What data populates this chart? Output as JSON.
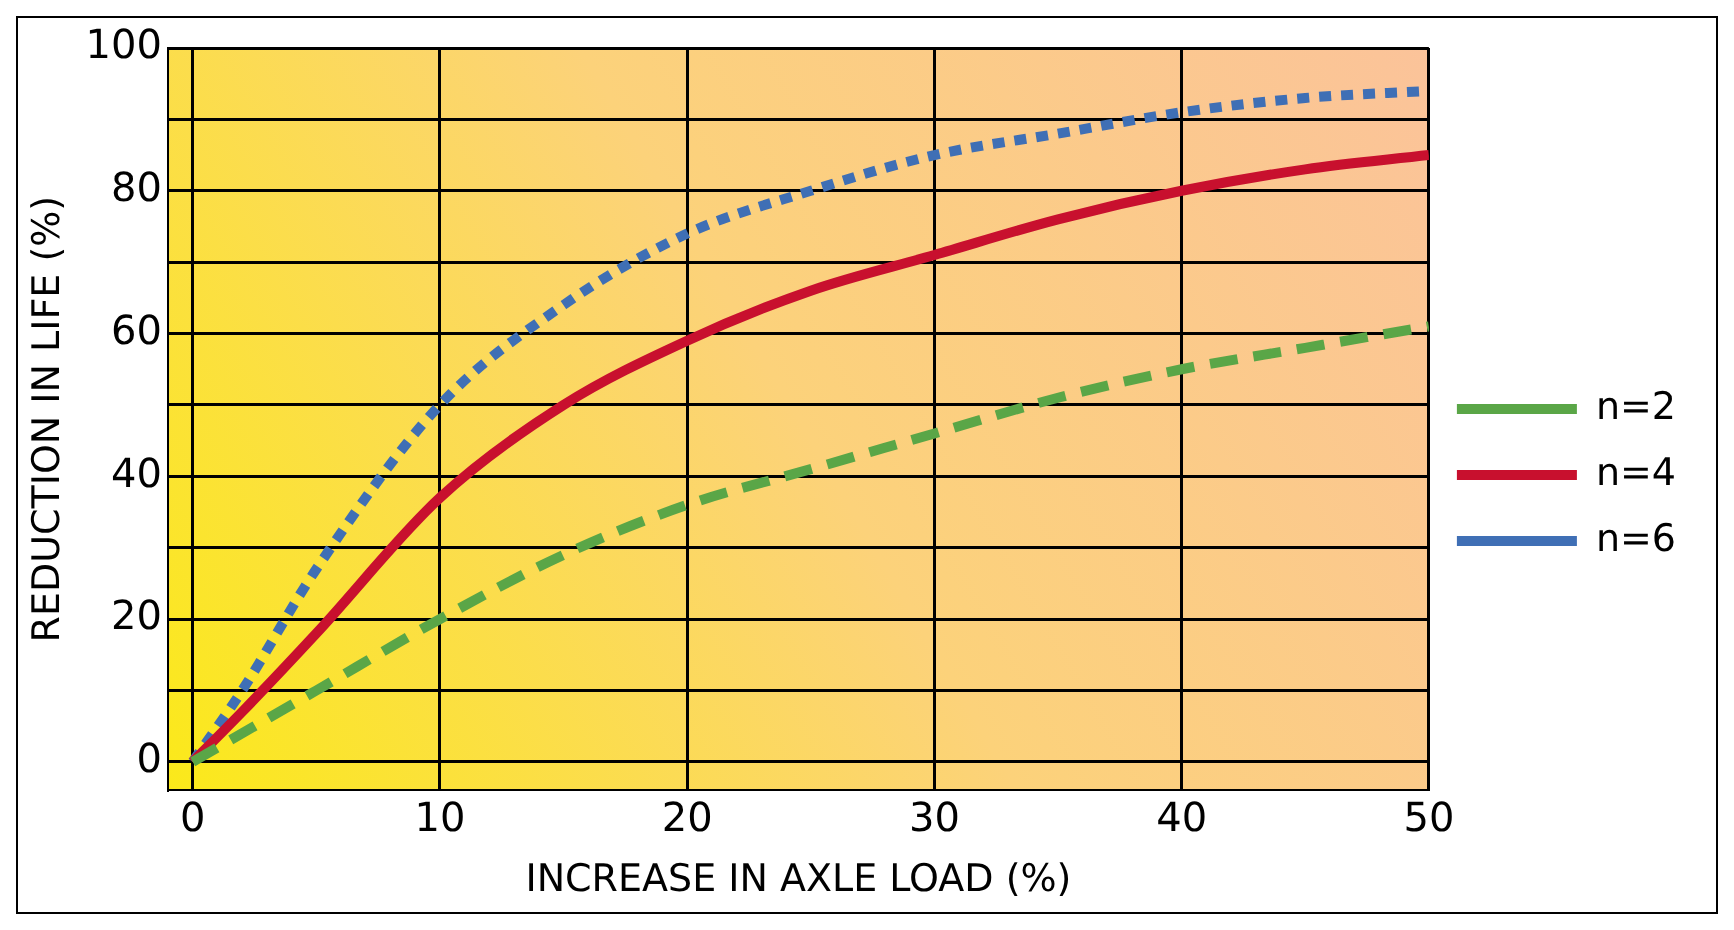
{
  "chart_data": {
    "type": "line",
    "xlabel": "INCREASE IN AXLE LOAD (%)",
    "ylabel": "REDUCTION IN LIFE (%)",
    "xlim": [
      -1,
      50
    ],
    "xticks": [
      0,
      10,
      20,
      30,
      40,
      50
    ],
    "ylim": [
      -4,
      100
    ],
    "yticks": [
      0,
      {
        "value": 10,
        "label": null
      },
      20,
      {
        "value": 30,
        "label": null
      },
      40,
      {
        "value": 50,
        "label": null
      },
      60,
      {
        "value": 70,
        "label": null
      },
      80,
      {
        "value": 90,
        "label": null
      },
      100
    ],
    "grid": true,
    "legend": "right",
    "marker": "none",
    "series": [
      {
        "name": "n=2",
        "color": "#5aa647",
        "line_style": "dashed",
        "x": [
          0,
          5,
          10,
          15,
          20,
          25,
          30,
          35,
          40,
          45,
          50
        ],
        "values": [
          0,
          10,
          20,
          29,
          36,
          41,
          46,
          51,
          55,
          58,
          61
        ]
      },
      {
        "name": "n=4",
        "color": "#c8102e",
        "line_style": "solid",
        "x": [
          0,
          2,
          5,
          10,
          15,
          20,
          25,
          30,
          35,
          40,
          45,
          50
        ],
        "values": [
          0,
          7,
          18,
          37,
          50,
          59,
          66,
          71,
          76,
          80,
          83,
          85
        ]
      },
      {
        "name": "n=6",
        "color": "#3f6fb5",
        "line_style": "dotted",
        "x": [
          0,
          2,
          5,
          10,
          15,
          20,
          25,
          30,
          35,
          40,
          45,
          50
        ],
        "values": [
          0,
          10,
          27,
          50,
          64,
          74,
          80,
          85,
          88,
          91,
          93,
          94
        ]
      }
    ]
  }
}
